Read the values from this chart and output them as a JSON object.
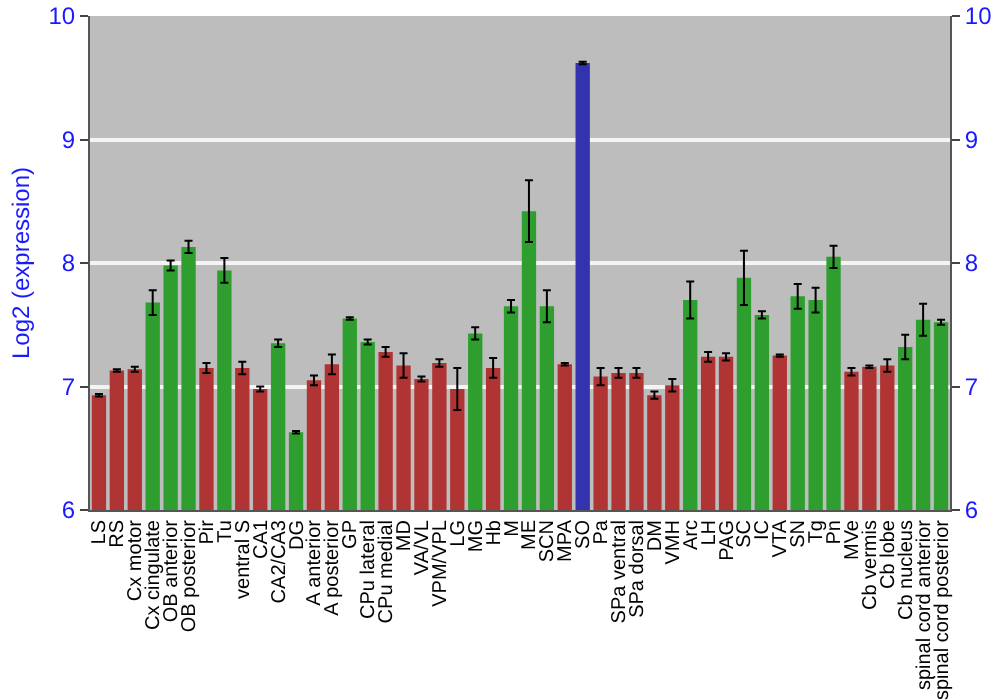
{
  "chart_data": {
    "type": "bar",
    "ylabel": "Log2 (expression)",
    "categories": [
      "LS",
      "RS",
      "Cx motor",
      "Cx cingulate",
      "OB anterior",
      "OB posterior",
      "Pir",
      "Tu",
      "ventral S",
      "CA1",
      "CA2/CA3",
      "DG",
      "A anterior",
      "A posterior",
      "GP",
      "CPu lateral",
      "CPu medial",
      "MD",
      "VA/VL",
      "VPM/VPL",
      "LG",
      "MG",
      "Hb",
      "M",
      "ME",
      "SCN",
      "MPA",
      "SO",
      "Pa",
      "SPa ventral",
      "SPa dorsal",
      "DM",
      "VMH",
      "Arc",
      "LH",
      "PAG",
      "SC",
      "IC",
      "VTA",
      "SN",
      "Tg",
      "Pn",
      "MVe",
      "Cb vermis",
      "Cb lobe",
      "Cb nucleus",
      "spinal cord anterior",
      "spinal cord posterior"
    ],
    "values": [
      6.93,
      7.13,
      7.14,
      7.68,
      7.98,
      8.13,
      7.15,
      7.94,
      7.15,
      6.98,
      7.35,
      6.63,
      7.05,
      7.18,
      7.55,
      7.36,
      7.28,
      7.17,
      7.06,
      7.19,
      6.98,
      7.43,
      7.15,
      7.65,
      8.42,
      7.65,
      7.18,
      9.62,
      7.08,
      7.11,
      7.11,
      6.93,
      7.01,
      7.7,
      7.24,
      7.24,
      7.88,
      7.58,
      7.25,
      7.73,
      7.7,
      8.05,
      7.12,
      7.16,
      7.17,
      7.32,
      7.54,
      7.52
    ],
    "errors": [
      0.01,
      0.01,
      0.02,
      0.1,
      0.04,
      0.05,
      0.04,
      0.1,
      0.05,
      0.02,
      0.03,
      0.01,
      0.04,
      0.08,
      0.01,
      0.02,
      0.04,
      0.1,
      0.02,
      0.03,
      0.17,
      0.05,
      0.08,
      0.05,
      0.25,
      0.13,
      0.01,
      0.01,
      0.07,
      0.04,
      0.04,
      0.03,
      0.05,
      0.15,
      0.04,
      0.03,
      0.22,
      0.03,
      0.01,
      0.1,
      0.1,
      0.09,
      0.03,
      0.01,
      0.05,
      0.1,
      0.13,
      0.02
    ],
    "colors": [
      "#b03434",
      "#b03434",
      "#b03434",
      "#2e9e2e",
      "#2e9e2e",
      "#2e9e2e",
      "#b03434",
      "#2e9e2e",
      "#b03434",
      "#b03434",
      "#2e9e2e",
      "#2e9e2e",
      "#b03434",
      "#b03434",
      "#2e9e2e",
      "#2e9e2e",
      "#b03434",
      "#b03434",
      "#b03434",
      "#b03434",
      "#b03434",
      "#2e9e2e",
      "#b03434",
      "#2e9e2e",
      "#2e9e2e",
      "#2e9e2e",
      "#b03434",
      "#3333b0",
      "#b03434",
      "#b03434",
      "#b03434",
      "#b03434",
      "#b03434",
      "#2e9e2e",
      "#b03434",
      "#b03434",
      "#2e9e2e",
      "#2e9e2e",
      "#b03434",
      "#2e9e2e",
      "#2e9e2e",
      "#2e9e2e",
      "#b03434",
      "#b03434",
      "#b03434",
      "#2e9e2e",
      "#2e9e2e",
      "#2e9e2e"
    ],
    "ylim": [
      6,
      10
    ],
    "yticks": [
      6,
      7,
      8,
      9,
      10
    ],
    "y2lim": [
      6,
      10
    ],
    "y2ticks": [
      6,
      7,
      8,
      9,
      10
    ],
    "grid": "y"
  }
}
